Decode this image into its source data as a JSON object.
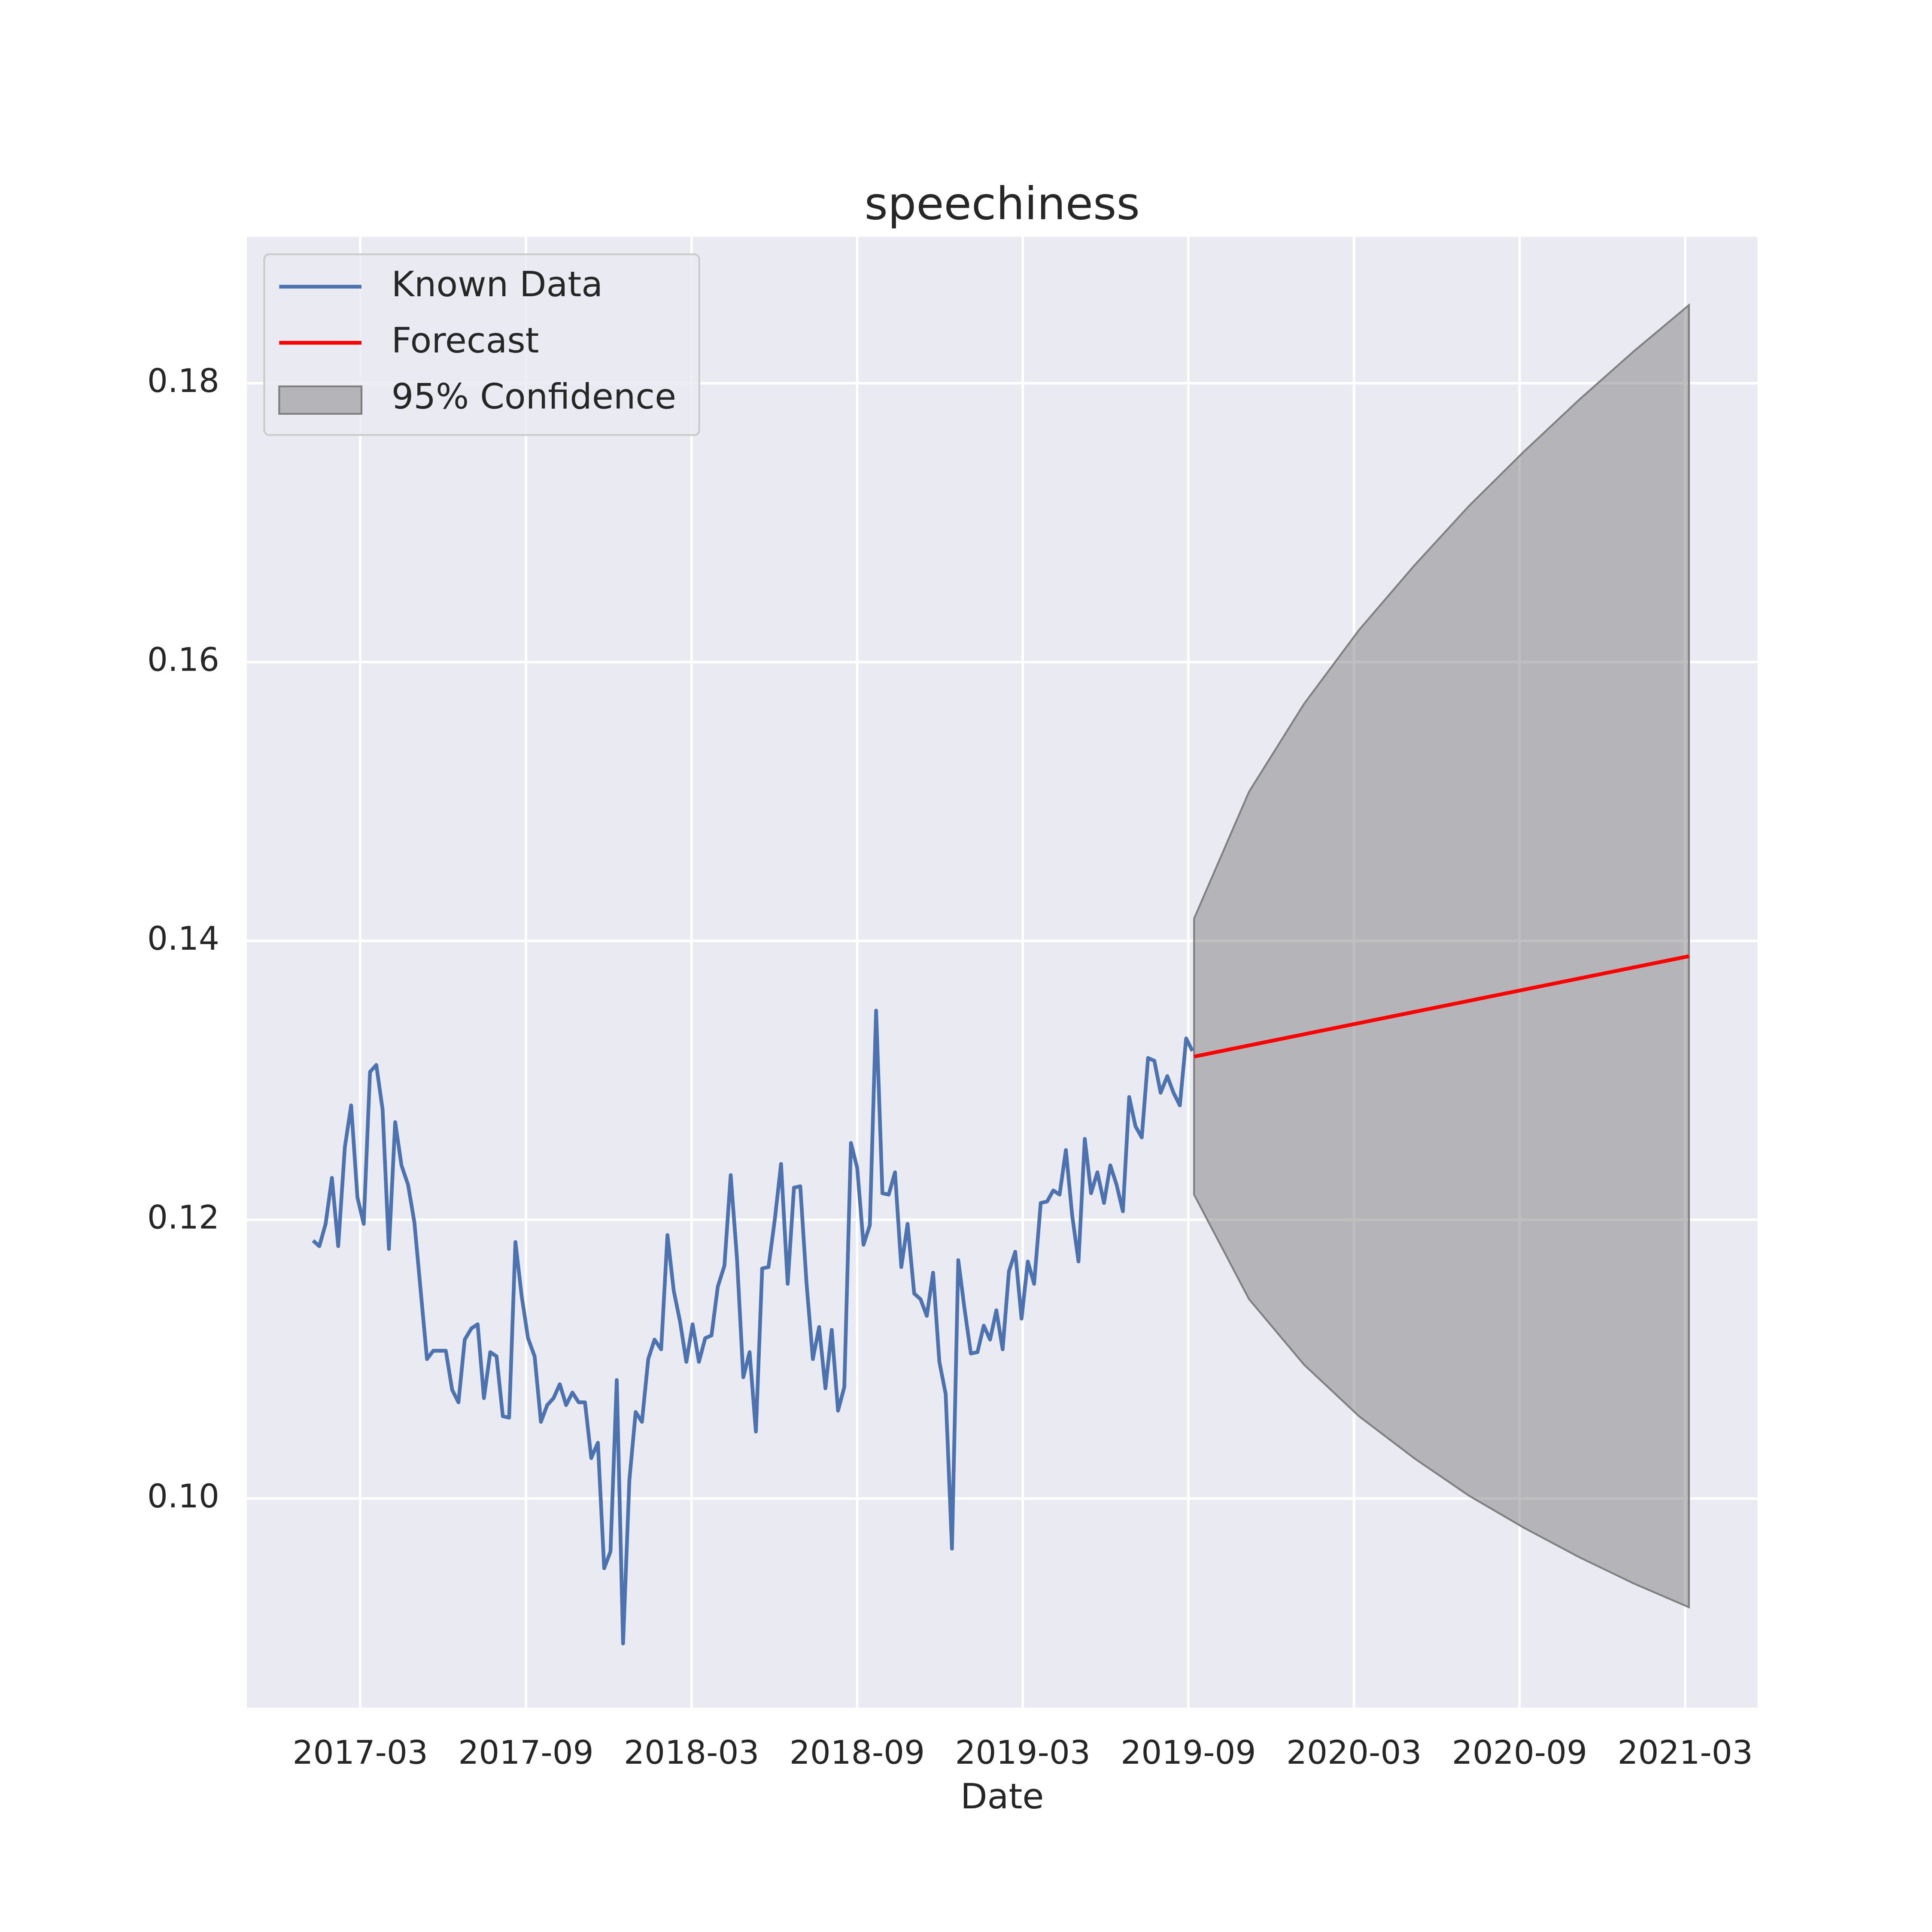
{
  "chart_data": {
    "type": "line",
    "title": "speechiness",
    "x_label": "Date",
    "xlim": [
      2016.824,
      2021.385
    ],
    "ylim": [
      0.085,
      0.1905
    ],
    "xticks": [
      {
        "value": 2017.1667,
        "label": "2017-03"
      },
      {
        "value": 2017.6667,
        "label": "2017-09"
      },
      {
        "value": 2018.1667,
        "label": "2018-03"
      },
      {
        "value": 2018.6667,
        "label": "2018-09"
      },
      {
        "value": 2019.1667,
        "label": "2019-03"
      },
      {
        "value": 2019.6667,
        "label": "2019-09"
      },
      {
        "value": 2020.1667,
        "label": "2020-03"
      },
      {
        "value": 2020.6667,
        "label": "2020-09"
      },
      {
        "value": 2021.1667,
        "label": "2021-03"
      }
    ],
    "yticks": [
      {
        "value": 0.1,
        "label": "0.10"
      },
      0.12,
      0.14,
      0.16,
      0.18
    ],
    "grid": true,
    "legend": "upper left",
    "series": [
      {
        "name": "Known Data",
        "color": "#4c72b0",
        "x": [
          2017.024,
          2017.043,
          2017.062,
          2017.081,
          2017.1,
          2017.12,
          2017.139,
          2017.158,
          2017.177,
          2017.196,
          2017.215,
          2017.234,
          2017.253,
          2017.272,
          2017.291,
          2017.311,
          2017.33,
          2017.349,
          2017.368,
          2017.387,
          2017.406,
          2017.425,
          2017.444,
          2017.463,
          2017.482,
          2017.502,
          2017.521,
          2017.54,
          2017.559,
          2017.578,
          2017.597,
          2017.616,
          2017.635,
          2017.654,
          2017.673,
          2017.693,
          2017.712,
          2017.731,
          2017.75,
          2017.769,
          2017.788,
          2017.807,
          2017.826,
          2017.845,
          2017.864,
          2017.884,
          2017.903,
          2017.922,
          2017.941,
          2017.96,
          2017.979,
          2017.998,
          2018.017,
          2018.036,
          2018.055,
          2018.075,
          2018.094,
          2018.113,
          2018.132,
          2018.151,
          2018.17,
          2018.189,
          2018.208,
          2018.227,
          2018.246,
          2018.266,
          2018.285,
          2018.304,
          2018.323,
          2018.342,
          2018.361,
          2018.38,
          2018.399,
          2018.418,
          2018.437,
          2018.457,
          2018.476,
          2018.495,
          2018.514,
          2018.533,
          2018.552,
          2018.571,
          2018.59,
          2018.609,
          2018.628,
          2018.648,
          2018.667,
          2018.686,
          2018.705,
          2018.724,
          2018.743,
          2018.762,
          2018.781,
          2018.8,
          2018.819,
          2018.839,
          2018.858,
          2018.877,
          2018.896,
          2018.915,
          2018.934,
          2018.953,
          2018.972,
          2018.991,
          2019.01,
          2019.03,
          2019.049,
          2019.068,
          2019.087,
          2019.106,
          2019.125,
          2019.144,
          2019.163,
          2019.182,
          2019.201,
          2019.221,
          2019.24,
          2019.259,
          2019.278,
          2019.297,
          2019.316,
          2019.335,
          2019.354,
          2019.373,
          2019.392,
          2019.412,
          2019.431,
          2019.45,
          2019.469,
          2019.488,
          2019.507,
          2019.526,
          2019.545,
          2019.564,
          2019.583,
          2019.603,
          2019.622,
          2019.641,
          2019.66,
          2019.679
        ],
        "values": [
          0.1185,
          0.1181,
          0.1197,
          0.123,
          0.1181,
          0.1252,
          0.1282,
          0.1216,
          0.1197,
          0.1306,
          0.1311,
          0.1279,
          0.1179,
          0.127,
          0.1239,
          0.1225,
          0.1198,
          0.1149,
          0.11,
          0.1106,
          0.1106,
          0.1106,
          0.1078,
          0.1069,
          0.1114,
          0.1122,
          0.1125,
          0.1072,
          0.1105,
          0.1102,
          0.1059,
          0.1058,
          0.1184,
          0.1145,
          0.1115,
          0.1102,
          0.1055,
          0.1067,
          0.1072,
          0.1082,
          0.1067,
          0.1076,
          0.1069,
          0.1069,
          0.1029,
          0.104,
          0.095,
          0.0962,
          0.1085,
          0.0896,
          0.1013,
          0.1062,
          0.1055,
          0.11,
          0.1114,
          0.1107,
          0.1189,
          0.1149,
          0.1127,
          0.1098,
          0.1125,
          0.1098,
          0.1115,
          0.1117,
          0.1152,
          0.1167,
          0.1232,
          0.1172,
          0.1087,
          0.1105,
          0.1048,
          0.1165,
          0.1166,
          0.12,
          0.124,
          0.1154,
          0.1223,
          0.1224,
          0.1154,
          0.11,
          0.1123,
          0.1079,
          0.1121,
          0.1063,
          0.108,
          0.1255,
          0.1237,
          0.1182,
          0.1196,
          0.135,
          0.1219,
          0.1218,
          0.1234,
          0.1166,
          0.1197,
          0.1147,
          0.1143,
          0.1131,
          0.1162,
          0.1098,
          0.1075,
          0.0964,
          0.1171,
          0.1136,
          0.1104,
          0.1105,
          0.1124,
          0.1114,
          0.1135,
          0.1107,
          0.1163,
          0.1177,
          0.1129,
          0.117,
          0.1154,
          0.1212,
          0.1213,
          0.1221,
          0.1218,
          0.125,
          0.1203,
          0.117,
          0.1258,
          0.1219,
          0.1234,
          0.1212,
          0.1239,
          0.1225,
          0.1206,
          0.1288,
          0.1267,
          0.1259,
          0.1316,
          0.1314,
          0.1291,
          0.1303,
          0.1291,
          0.1282,
          0.133,
          0.1321
        ]
      },
      {
        "name": "Forecast",
        "color": "#ff0000",
        "x": [
          2019.684,
          2019.85,
          2020.016,
          2020.182,
          2020.348,
          2020.514,
          2020.68,
          2020.846,
          2021.012,
          2021.178
        ],
        "values": [
          0.1317,
          0.1325,
          0.1333,
          0.1341,
          0.1349,
          0.1357,
          0.1365,
          0.1373,
          0.1381,
          0.1389
        ]
      }
    ],
    "band": {
      "name": "95% Confidence",
      "color": "#808080",
      "x": [
        2019.684,
        2019.85,
        2020.016,
        2020.182,
        2020.348,
        2020.514,
        2020.68,
        2020.846,
        2021.012,
        2021.178
      ],
      "lower": [
        0.1218,
        0.1143,
        0.1096,
        0.1059,
        0.1029,
        0.1002,
        0.0979,
        0.0958,
        0.0939,
        0.0922
      ],
      "upper": [
        0.1416,
        0.1507,
        0.157,
        0.1623,
        0.1669,
        0.1712,
        0.1751,
        0.1788,
        0.1823,
        0.1856
      ]
    }
  }
}
